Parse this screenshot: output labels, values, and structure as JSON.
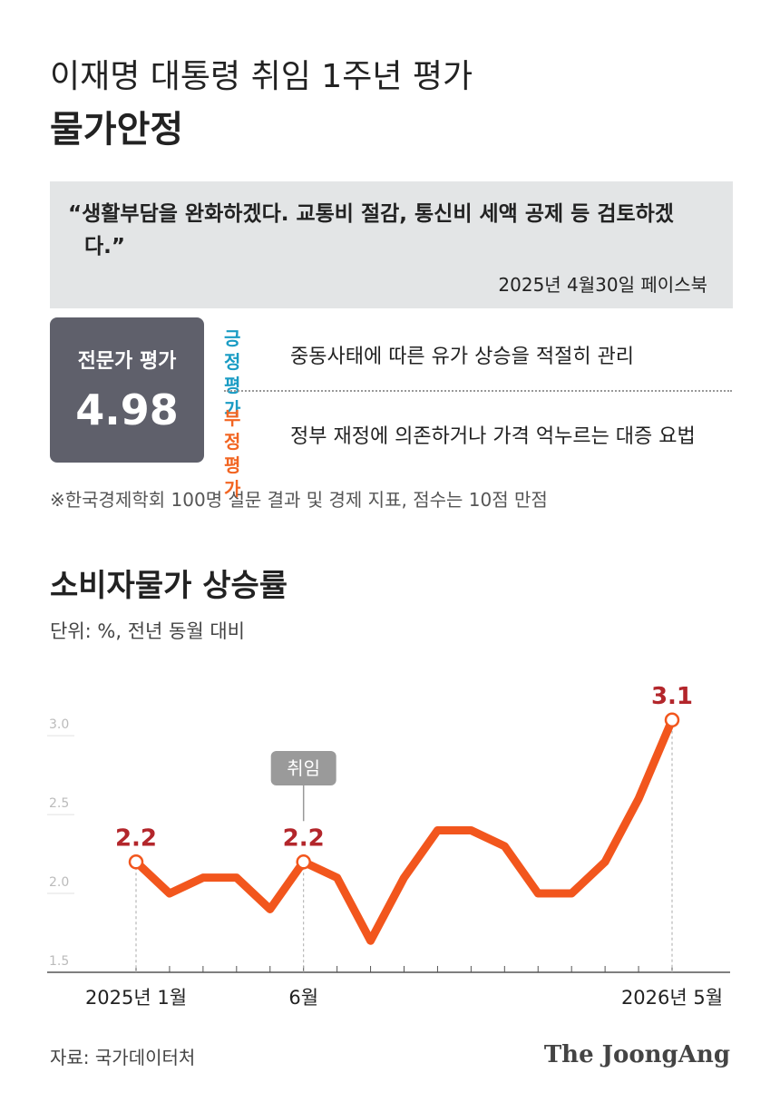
{
  "header": {
    "title": "이재명 대통령 취임 1주년 평가",
    "subtitle": "물가안정"
  },
  "quote": {
    "text": "“생활부담을 완화하겠다. 교통비 절감, 통신비 세액 공제 등 검토하겠다.”",
    "source": "2025년 4월30일 페이스북"
  },
  "evaluation": {
    "label": "전문가 평가",
    "score": 4.98,
    "positive": {
      "label": "긍정 평가",
      "text": "중동사태에 따른 유가 상승을 적절히 관리"
    },
    "negative": {
      "label": "부정 평가",
      "text": "정부 재정에 의존하거나 가격 억누르는 대증 요법"
    }
  },
  "note": "※한국경제학회 100명 설문 결과 및 경제 지표, 점수는 10점 만점",
  "chart_data": {
    "type": "line",
    "title": "소비자물가 상승률",
    "unit": "단위: %, 전년 동월 대비",
    "categories": [
      "2025년 1월",
      null,
      null,
      null,
      null,
      "6월",
      null,
      null,
      null,
      null,
      null,
      null,
      null,
      null,
      null,
      null,
      "2026년 5월"
    ],
    "values": [
      2.2,
      2.0,
      2.1,
      2.1,
      1.9,
      2.2,
      2.1,
      1.7,
      2.1,
      2.4,
      2.4,
      2.3,
      2.0,
      2.0,
      2.2,
      2.6,
      3.1
    ],
    "color": "#f2561d",
    "label_color": "#b3262b",
    "labeled_points": [
      0,
      5,
      16
    ],
    "annotation": {
      "text": "취임",
      "index": 5
    },
    "ylim": [
      1.5,
      3.3
    ],
    "yticks": [
      {
        "value": 1.5,
        "label": "1.5"
      },
      {
        "value": 2.0,
        "label": "2.0"
      },
      {
        "value": 2.5,
        "label": "2.5"
      },
      {
        "value": 3.0,
        "label": "3.0"
      }
    ]
  },
  "source": "자료: 국가데이터처",
  "logo": "The JoongAng"
}
